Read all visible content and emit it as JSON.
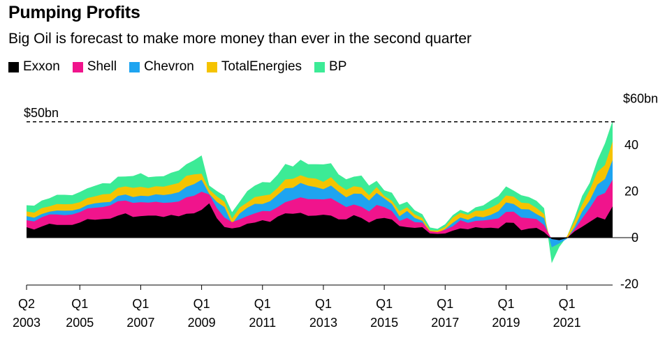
{
  "title": "Pumping Profits",
  "subtitle": "Big Oil is forecast to make more money than ever in the second quarter",
  "colors": {
    "Exxon": "#000000",
    "Shell": "#f0148c",
    "Chevron": "#1ea4f0",
    "TotalEnergies": "#f5c300",
    "BP": "#3ceb96"
  },
  "reference_label": "$50bn",
  "chart_data": {
    "type": "area",
    "stacked": true,
    "x_start": "2003 Q2",
    "ylim": [
      -20,
      60
    ],
    "y_ticks": [
      {
        "value": 60,
        "label": "$60bn"
      },
      {
        "value": 40,
        "label": "40"
      },
      {
        "value": 20,
        "label": "20"
      },
      {
        "value": 0,
        "label": "0"
      },
      {
        "value": -20,
        "label": "-20"
      }
    ],
    "x_ticks": [
      {
        "index": 0,
        "quarter": "Q2",
        "year": "2003"
      },
      {
        "index": 7,
        "quarter": "Q1",
        "year": "2005"
      },
      {
        "index": 15,
        "quarter": "Q1",
        "year": "2007"
      },
      {
        "index": 23,
        "quarter": "Q1",
        "year": "2009"
      },
      {
        "index": 31,
        "quarter": "Q1",
        "year": "2011"
      },
      {
        "index": 39,
        "quarter": "Q1",
        "year": "2013"
      },
      {
        "index": 47,
        "quarter": "Q1",
        "year": "2015"
      },
      {
        "index": 55,
        "quarter": "Q1",
        "year": "2017"
      },
      {
        "index": 63,
        "quarter": "Q1",
        "year": "2019"
      },
      {
        "index": 71,
        "quarter": "Q1",
        "year": "2021"
      }
    ],
    "reference_line": 50,
    "series": [
      {
        "name": "Exxon",
        "values": [
          4.5,
          3.5,
          4.8,
          6.0,
          5.5,
          5.5,
          5.5,
          6.5,
          8.0,
          7.7,
          8.0,
          8.2,
          9.5,
          10.5,
          8.9,
          9.3,
          9.5,
          9.5,
          8.9,
          9.8,
          9.2,
          10.3,
          10.5,
          12.0,
          14.8,
          8.4,
          4.6,
          4.0,
          4.5,
          6.0,
          6.5,
          7.5,
          6.8,
          9.1,
          10.5,
          10.3,
          10.7,
          9.4,
          9.5,
          9.9,
          9.5,
          7.9,
          7.9,
          9.7,
          8.5,
          6.5,
          8.1,
          8.5,
          7.8,
          5.0,
          4.5,
          4.2,
          4.5,
          1.8,
          1.6,
          1.8,
          3.0,
          4.0,
          3.6,
          4.5,
          4.1,
          4.3,
          4.0,
          6.5,
          6.4,
          3.2,
          3.9,
          4.2,
          2.4,
          -0.6,
          -1.1,
          -0.2,
          2.7,
          4.7,
          6.8,
          8.9,
          7.8,
          13.5
        ]
      },
      {
        "name": "Shell",
        "values": [
          3.0,
          3.5,
          4.0,
          4.0,
          4.5,
          4.2,
          4.5,
          4.5,
          4.6,
          5.2,
          5.2,
          5.7,
          6.2,
          5.5,
          6.1,
          6.0,
          5.6,
          6.0,
          6.1,
          5.4,
          6.4,
          7.1,
          7.6,
          7.8,
          3.8,
          4.4,
          4.1,
          2.7,
          3.4,
          3.3,
          4.0,
          4.0,
          4.6,
          4.1,
          4.8,
          6.0,
          6.7,
          7.2,
          7.1,
          6.6,
          7.5,
          7.2,
          5.3,
          4.6,
          4.8,
          4.8,
          6.0,
          4.7,
          3.7,
          2.2,
          4.0,
          2.5,
          2.0,
          1.0,
          0.8,
          1.6,
          1.9,
          3.5,
          2.8,
          2.7,
          3.3,
          3.5,
          4.3,
          4.6,
          4.8,
          5.5,
          4.5,
          3.8,
          3.0,
          0.0,
          0.0,
          0.0,
          0.8,
          3.6,
          6.0,
          9.0,
          11.5,
          11.5
        ]
      },
      {
        "name": "Chevron",
        "values": [
          1.8,
          1.6,
          1.4,
          1.2,
          1.7,
          1.9,
          1.7,
          1.5,
          1.5,
          1.9,
          2.0,
          1.5,
          2.3,
          2.6,
          2.5,
          2.8,
          2.8,
          3.2,
          3.4,
          3.6,
          4.0,
          4.5,
          5.0,
          5.2,
          0.3,
          2.6,
          4.5,
          -0.7,
          2.5,
          3.6,
          4.1,
          3.0,
          4.3,
          5.3,
          6.0,
          5.2,
          6.2,
          5.8,
          5.2,
          4.4,
          5.5,
          4.7,
          4.2,
          4.7,
          5.6,
          4.7,
          5.2,
          3.7,
          3.0,
          2.0,
          3.0,
          1.8,
          0.8,
          -0.6,
          -0.4,
          0.3,
          1.5,
          1.2,
          1.3,
          2.0,
          1.4,
          2.0,
          3.1,
          4.1,
          3.3,
          3.6,
          3.8,
          2.2,
          3.0,
          -3.6,
          -1.4,
          -0.3,
          1.1,
          3.0,
          3.3,
          5.0,
          6.0,
          8.5
        ]
      },
      {
        "name": "TotalEnergies",
        "values": [
          2.0,
          2.2,
          2.6,
          2.3,
          2.8,
          2.8,
          2.8,
          2.8,
          3.0,
          3.0,
          3.5,
          3.5,
          3.5,
          3.5,
          4.0,
          3.8,
          3.5,
          3.5,
          3.6,
          4.0,
          4.0,
          4.8,
          4.2,
          2.6,
          1.9,
          2.4,
          2.3,
          2.2,
          2.6,
          2.3,
          2.9,
          3.6,
          2.9,
          3.0,
          3.8,
          3.9,
          3.3,
          3.4,
          3.7,
          3.2,
          3.6,
          3.0,
          3.2,
          3.2,
          2.8,
          2.3,
          2.5,
          1.1,
          1.4,
          2.2,
          1.6,
          1.5,
          1.2,
          1.0,
          1.0,
          1.0,
          2.3,
          2.0,
          2.1,
          2.4,
          2.8,
          3.1,
          3.2,
          3.0,
          3.2,
          2.8,
          2.6,
          2.6,
          1.8,
          0.0,
          0.0,
          1.1,
          2.5,
          3.0,
          4.5,
          5.5,
          6.0,
          8.0
        ]
      },
      {
        "name": "BP",
        "values": [
          2.7,
          3.0,
          3.2,
          3.5,
          4.0,
          4.1,
          3.8,
          4.4,
          4.2,
          4.6,
          4.8,
          4.5,
          4.8,
          4.3,
          5.1,
          5.9,
          4.7,
          4.2,
          4.5,
          5.2,
          5.4,
          5.0,
          6.1,
          7.9,
          1.7,
          2.3,
          2.6,
          2.8,
          2.5,
          4.9,
          5.0,
          5.9,
          5.2,
          5.7,
          6.7,
          5.3,
          6.7,
          5.9,
          6.2,
          7.5,
          6.0,
          4.5,
          4.6,
          4.1,
          5.1,
          4.2,
          2.7,
          2.4,
          3.5,
          2.8,
          2.4,
          1.8,
          1.6,
          1.2,
          0.8,
          1.1,
          1.0,
          1.3,
          1.0,
          1.5,
          2.3,
          3.2,
          3.4,
          3.9,
          2.6,
          3.2,
          2.7,
          3.1,
          2.5,
          -6.8,
          -1.5,
          -0.2,
          1.5,
          3.7,
          3.1,
          5.0,
          9.4,
          9.0
        ]
      }
    ]
  }
}
